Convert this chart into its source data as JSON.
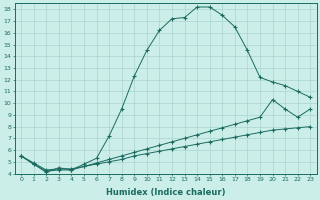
{
  "xlabel": "Humidex (Indice chaleur)",
  "ylabel": "",
  "bg_color": "#cceee8",
  "grid_color": "#aad4ce",
  "line_color": "#1a6b60",
  "xlim": [
    -0.5,
    23.5
  ],
  "ylim": [
    4,
    18.5
  ],
  "xticks": [
    0,
    1,
    2,
    3,
    4,
    5,
    6,
    7,
    8,
    9,
    10,
    11,
    12,
    13,
    14,
    15,
    16,
    17,
    18,
    19,
    20,
    21,
    22,
    23
  ],
  "yticks": [
    4,
    5,
    6,
    7,
    8,
    9,
    10,
    11,
    12,
    13,
    14,
    15,
    16,
    17,
    18
  ],
  "series": [
    {
      "x": [
        0,
        1,
        2,
        3,
        4,
        5,
        6,
        7,
        8,
        9,
        10,
        11,
        12,
        13,
        14,
        15,
        16,
        17,
        18,
        19,
        20,
        21,
        22,
        23
      ],
      "y": [
        5.5,
        4.8,
        4.1,
        4.5,
        4.3,
        4.8,
        5.3,
        7.2,
        9.5,
        12.3,
        14.5,
        16.2,
        17.2,
        17.3,
        18.2,
        18.2,
        17.5,
        16.5,
        14.5,
        12.2,
        11.8,
        11.5,
        11.0,
        10.5
      ]
    },
    {
      "x": [
        0,
        1,
        2,
        3,
        4,
        5,
        6,
        7,
        8,
        9,
        10,
        11,
        12,
        13,
        14,
        15,
        16,
        17,
        18,
        19,
        20,
        21,
        22,
        23
      ],
      "y": [
        5.5,
        4.8,
        4.2,
        4.3,
        4.3,
        4.6,
        4.9,
        5.2,
        5.5,
        5.8,
        6.1,
        6.4,
        6.7,
        7.0,
        7.3,
        7.6,
        7.9,
        8.2,
        8.5,
        8.8,
        10.3,
        9.5,
        8.8,
        9.5
      ]
    },
    {
      "x": [
        0,
        1,
        2,
        3,
        4,
        5,
        6,
        7,
        8,
        9,
        10,
        11,
        12,
        13,
        14,
        15,
        16,
        17,
        18,
        19,
        20,
        21,
        22,
        23
      ],
      "y": [
        5.5,
        4.9,
        4.3,
        4.4,
        4.4,
        4.6,
        4.8,
        5.0,
        5.2,
        5.5,
        5.7,
        5.9,
        6.1,
        6.3,
        6.5,
        6.7,
        6.9,
        7.1,
        7.3,
        7.5,
        7.7,
        7.8,
        7.9,
        8.0
      ]
    }
  ]
}
